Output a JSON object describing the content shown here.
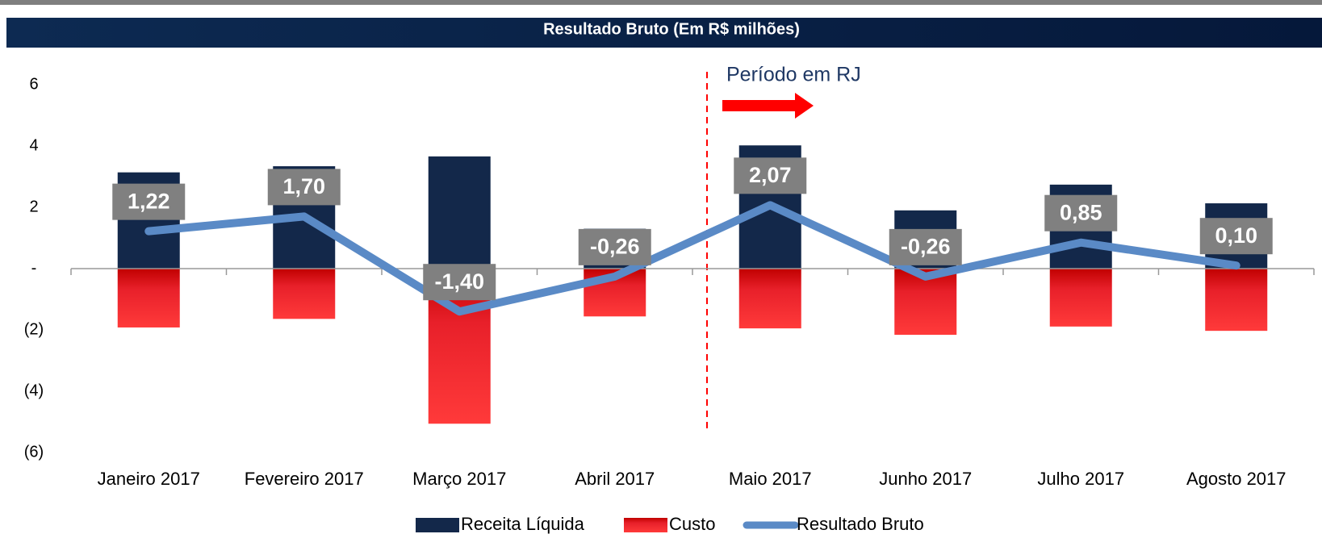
{
  "chart_data": {
    "type": "bar",
    "title": "Resultado Bruto (Em R$ milhões)",
    "annotation": "Período em RJ",
    "categories": [
      "Janeiro 2017",
      "Fevereiro 2017",
      "Março 2017",
      "Abril 2017",
      "Maio 2017",
      "Junho 2017",
      "Julho 2017",
      "Agosto 2017"
    ],
    "series": [
      {
        "name": "Receita Líquida",
        "type": "bar",
        "color": "#13284a",
        "values": [
          3.14,
          3.34,
          3.66,
          1.3,
          4.02,
          1.9,
          2.74,
          2.13
        ]
      },
      {
        "name": "Custo",
        "type": "bar",
        "color": "#e8202a",
        "values": [
          -1.92,
          -1.64,
          -5.06,
          -1.56,
          -1.95,
          -2.16,
          -1.89,
          -2.03
        ]
      },
      {
        "name": "Resultado Bruto",
        "type": "line",
        "color": "#5a8ac6",
        "values": [
          1.22,
          1.7,
          -1.4,
          -0.26,
          2.07,
          -0.26,
          0.85,
          0.1
        ],
        "value_labels": [
          "1,22",
          "1,70",
          "-1,40",
          "-0,26",
          "2,07",
          "-0,26",
          "0,85",
          "0,10"
        ]
      }
    ],
    "ylim": [
      -6,
      6
    ],
    "yticks": [
      6,
      4,
      2,
      {
        "value": 0,
        "label": "-"
      },
      {
        "value": -2,
        "label": "(2)"
      },
      {
        "value": -4,
        "label": "(4)"
      },
      {
        "value": -6,
        "label": "(6)"
      }
    ],
    "legend": "bottom"
  }
}
